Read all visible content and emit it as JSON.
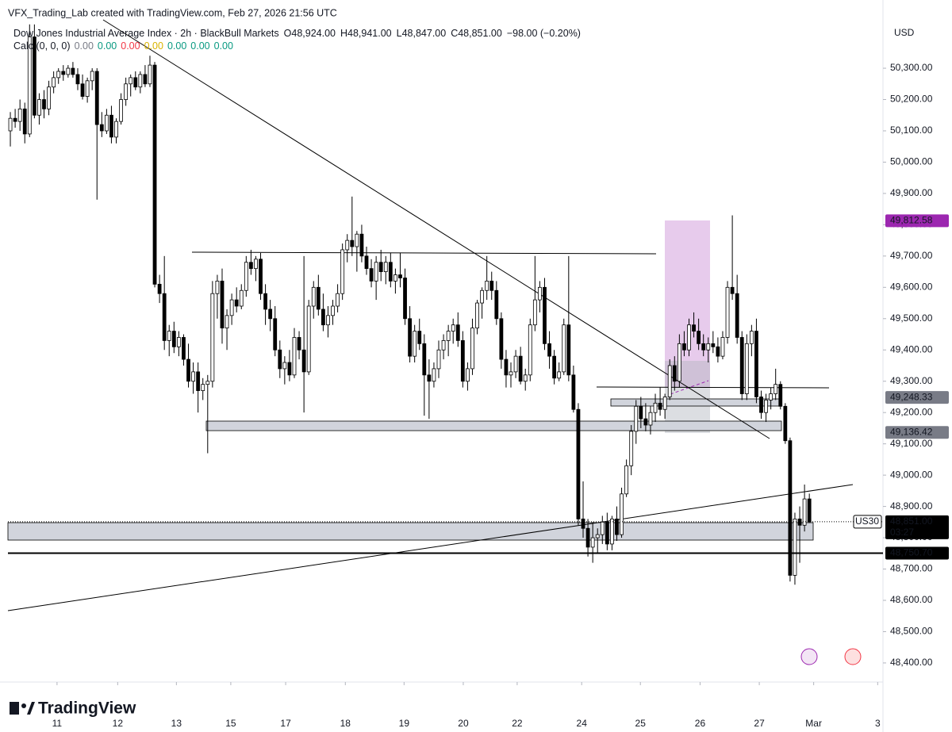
{
  "header": {
    "credit": "VFX_Trading_Lab created with TradingView.com, Feb 27, 2026 21:56 UTC",
    "symbol": "Dow Jones Industrial Average Index · 2h · BlackBull Markets",
    "open": "O48,924.00",
    "high": "H48,941.00",
    "low": "L48,847.00",
    "close": "C48,851.00",
    "change": "−98.00 (−0.20%)",
    "indicator": "Calc (0, 0, 0)",
    "indicator_values": [
      {
        "label": "0.00",
        "color": "#787b86"
      },
      {
        "label": "0.00",
        "color": "#089981"
      },
      {
        "label": "0.00",
        "color": "#f23645"
      },
      {
        "label": "0.00",
        "color": "#d9b400"
      },
      {
        "label": "0.00",
        "color": "#089981"
      },
      {
        "label": "0.00",
        "color": "#089981"
      },
      {
        "label": "0.00",
        "color": "#089981"
      }
    ]
  },
  "currency": "USD",
  "logo": "TradingView",
  "chart_data": {
    "type": "candlestick",
    "up_color": "#ffffff",
    "down_color": "#000000",
    "border_color": "#000000",
    "xlim": [
      -0.5,
      181.3
    ],
    "ylim": [
      48339,
      50442
    ],
    "grid": false,
    "xticks": [
      {
        "value": 9.7,
        "label": "11"
      },
      {
        "value": 22.3,
        "label": "12"
      },
      {
        "value": 34.5,
        "label": "13"
      },
      {
        "value": 45.8,
        "label": "15"
      },
      {
        "value": 57.2,
        "label": "17"
      },
      {
        "value": 69.6,
        "label": "18"
      },
      {
        "value": 81.8,
        "label": "19"
      },
      {
        "value": 94.1,
        "label": "20"
      },
      {
        "value": 105.3,
        "label": "22"
      },
      {
        "value": 118.7,
        "label": "24"
      },
      {
        "value": 130.9,
        "label": "25"
      },
      {
        "value": 143.3,
        "label": "26"
      },
      {
        "value": 155.6,
        "label": "27"
      },
      {
        "value": 166.9,
        "label": "Mar"
      },
      {
        "value": 180.2,
        "label": "3"
      }
    ],
    "yticks": [
      {
        "value": 48400,
        "label": "48,400.00"
      },
      {
        "value": 48500,
        "label": "48,500.00"
      },
      {
        "value": 48600,
        "label": "48,600.00"
      },
      {
        "value": 48700,
        "label": "48,700.00"
      },
      {
        "value": 48800,
        "label": "48,800.00"
      },
      {
        "value": 48900,
        "label": "48,900.00"
      },
      {
        "value": 49000,
        "label": "49,000.00"
      },
      {
        "value": 49100,
        "label": "49,100.00"
      },
      {
        "value": 49200,
        "label": "49,200.00"
      },
      {
        "value": 49300,
        "label": "49,300.00"
      },
      {
        "value": 49400,
        "label": "49,400.00"
      },
      {
        "value": 49500,
        "label": "49,500.00"
      },
      {
        "value": 49600,
        "label": "49,600.00"
      },
      {
        "value": 49700,
        "label": "49,700.00"
      },
      {
        "value": 49800,
        "label": "49,800.00"
      },
      {
        "value": 49900,
        "label": "49,900.00"
      },
      {
        "value": 50000,
        "label": "50,000.00"
      },
      {
        "value": 50100,
        "label": "50,100.00"
      },
      {
        "value": 50200,
        "label": "50,200.00"
      },
      {
        "value": 50300,
        "label": "50,300.00"
      }
    ],
    "price_labels": [
      {
        "value": 49812.58,
        "label": "49,812.58",
        "color": "#9c27b0"
      },
      {
        "value": 49248.33,
        "label": "49,248.33",
        "color": "#787b86"
      },
      {
        "value": 49136.42,
        "label": "49,136.42",
        "color": "#787b86"
      },
      {
        "value": 48750.7,
        "label": "48,750.70",
        "color": "#000000"
      }
    ],
    "current": {
      "value": 48851,
      "label": "48,851.00",
      "countdown": "03:27",
      "symbol": "US30"
    },
    "ohlc": [
      [
        50100,
        50160,
        50050,
        50140
      ],
      [
        50140,
        50170,
        50110,
        50130
      ],
      [
        50130,
        50200,
        50100,
        50170
      ],
      [
        50170,
        50190,
        50060,
        50090
      ],
      [
        50090,
        50440,
        50080,
        50400
      ],
      [
        50400,
        50440,
        50140,
        50150
      ],
      [
        50150,
        50220,
        50120,
        50200
      ],
      [
        50200,
        50230,
        50140,
        50170
      ],
      [
        50170,
        50260,
        50150,
        50240
      ],
      [
        50240,
        50290,
        50220,
        50270
      ],
      [
        50270,
        50300,
        50250,
        50290
      ],
      [
        50290,
        50310,
        50260,
        50280
      ],
      [
        50280,
        50310,
        50270,
        50300
      ],
      [
        50300,
        50320,
        50270,
        50280
      ],
      [
        50280,
        50300,
        50230,
        50250
      ],
      [
        50250,
        50280,
        50200,
        50210
      ],
      [
        50210,
        50270,
        50190,
        50260
      ],
      [
        50260,
        50300,
        50230,
        50290
      ],
      [
        50290,
        50300,
        49880,
        50120
      ],
      [
        50120,
        50160,
        50080,
        50100
      ],
      [
        50100,
        50170,
        50090,
        50150
      ],
      [
        50150,
        50180,
        50060,
        50080
      ],
      [
        50080,
        50140,
        50060,
        50130
      ],
      [
        50130,
        50220,
        50120,
        50200
      ],
      [
        50200,
        50270,
        50180,
        50250
      ],
      [
        50250,
        50280,
        50210,
        50270
      ],
      [
        50270,
        50290,
        50230,
        50240
      ],
      [
        50240,
        50290,
        50220,
        50280
      ],
      [
        50280,
        50310,
        50240,
        50250
      ],
      [
        50250,
        50340,
        50240,
        50310
      ],
      [
        50310,
        50320,
        49600,
        49610
      ],
      [
        49610,
        49640,
        49550,
        49580
      ],
      [
        49580,
        49700,
        49400,
        49430
      ],
      [
        49430,
        49480,
        49380,
        49460
      ],
      [
        49460,
        49490,
        49390,
        49410
      ],
      [
        49410,
        49460,
        49380,
        49440
      ],
      [
        49440,
        49450,
        49350,
        49370
      ],
      [
        49370,
        49420,
        49280,
        49300
      ],
      [
        49300,
        49360,
        49260,
        49330
      ],
      [
        49330,
        49360,
        49200,
        49270
      ],
      [
        49270,
        49310,
        49240,
        49290
      ],
      [
        49290,
        49320,
        49070,
        49300
      ],
      [
        49300,
        49620,
        49280,
        49580
      ],
      [
        49580,
        49640,
        49500,
        49620
      ],
      [
        49620,
        49660,
        49420,
        49470
      ],
      [
        49470,
        49530,
        49400,
        49510
      ],
      [
        49510,
        49580,
        49480,
        49560
      ],
      [
        49560,
        49600,
        49520,
        49540
      ],
      [
        49540,
        49610,
        49530,
        49590
      ],
      [
        49590,
        49700,
        49570,
        49680
      ],
      [
        49680,
        49720,
        49640,
        49660
      ],
      [
        49660,
        49700,
        49620,
        49690
      ],
      [
        49690,
        49710,
        49560,
        49580
      ],
      [
        49580,
        49610,
        49480,
        49530
      ],
      [
        49530,
        49560,
        49460,
        49500
      ],
      [
        49500,
        49540,
        49380,
        49400
      ],
      [
        49400,
        49430,
        49310,
        49340
      ],
      [
        49340,
        49380,
        49290,
        49360
      ],
      [
        49360,
        49400,
        49300,
        49320
      ],
      [
        49320,
        49470,
        49310,
        49440
      ],
      [
        49440,
        49460,
        49370,
        49400
      ],
      [
        49400,
        49700,
        49200,
        49330
      ],
      [
        49330,
        49560,
        49320,
        49540
      ],
      [
        49540,
        49620,
        49500,
        49600
      ],
      [
        49600,
        49640,
        49510,
        49530
      ],
      [
        49530,
        49580,
        49460,
        49480
      ],
      [
        49480,
        49540,
        49440,
        49510
      ],
      [
        49510,
        49560,
        49480,
        49540
      ],
      [
        49540,
        49610,
        49520,
        49580
      ],
      [
        49580,
        49740,
        49560,
        49720
      ],
      [
        49720,
        49770,
        49680,
        49750
      ],
      [
        49750,
        49890,
        49700,
        49730
      ],
      [
        49730,
        49780,
        49650,
        49770
      ],
      [
        49770,
        49800,
        49680,
        49700
      ],
      [
        49700,
        49730,
        49640,
        49660
      ],
      [
        49660,
        49690,
        49600,
        49620
      ],
      [
        49620,
        49700,
        49560,
        49680
      ],
      [
        49680,
        49720,
        49620,
        49650
      ],
      [
        49650,
        49700,
        49610,
        49680
      ],
      [
        49680,
        49710,
        49600,
        49620
      ],
      [
        49620,
        49660,
        49580,
        49640
      ],
      [
        49640,
        49710,
        49600,
        49630
      ],
      [
        49630,
        49660,
        49480,
        49500
      ],
      [
        49500,
        49540,
        49360,
        49380
      ],
      [
        49380,
        49480,
        49360,
        49460
      ],
      [
        49460,
        49500,
        49400,
        49420
      ],
      [
        49420,
        49450,
        49190,
        49320
      ],
      [
        49320,
        49370,
        49180,
        49300
      ],
      [
        49300,
        49360,
        49280,
        49340
      ],
      [
        49340,
        49430,
        49310,
        49400
      ],
      [
        49400,
        49450,
        49370,
        49430
      ],
      [
        49430,
        49480,
        49380,
        49460
      ],
      [
        49460,
        49500,
        49420,
        49480
      ],
      [
        49480,
        49520,
        49410,
        49430
      ],
      [
        49430,
        49460,
        49280,
        49300
      ],
      [
        49300,
        49360,
        49270,
        49340
      ],
      [
        49340,
        49500,
        49320,
        49470
      ],
      [
        49470,
        49560,
        49450,
        49550
      ],
      [
        49550,
        49600,
        49500,
        49590
      ],
      [
        49590,
        49700,
        49560,
        49620
      ],
      [
        49620,
        49650,
        49560,
        49590
      ],
      [
        49590,
        49620,
        49480,
        49500
      ],
      [
        49500,
        49520,
        49340,
        49370
      ],
      [
        49370,
        49400,
        49280,
        49320
      ],
      [
        49320,
        49360,
        49280,
        49330
      ],
      [
        49330,
        49400,
        49310,
        49380
      ],
      [
        49380,
        49410,
        49290,
        49300
      ],
      [
        49300,
        49340,
        49270,
        49320
      ],
      [
        49320,
        49500,
        49300,
        49480
      ],
      [
        49480,
        49700,
        49460,
        49560
      ],
      [
        49560,
        49620,
        49520,
        49600
      ],
      [
        49600,
        49630,
        49400,
        49420
      ],
      [
        49420,
        49460,
        49340,
        49380
      ],
      [
        49380,
        49400,
        49290,
        49310
      ],
      [
        49310,
        49360,
        49300,
        49330
      ],
      [
        49330,
        49500,
        49320,
        49480
      ],
      [
        49480,
        49700,
        49300,
        49320
      ],
      [
        49320,
        49350,
        49200,
        49210
      ],
      [
        49210,
        49230,
        48840,
        48860
      ],
      [
        48860,
        48980,
        48800,
        48830
      ],
      [
        48830,
        48860,
        48740,
        48770
      ],
      [
        48770,
        48850,
        48720,
        48800
      ],
      [
        48800,
        48830,
        48750,
        48810
      ],
      [
        48810,
        48870,
        48780,
        48850
      ],
      [
        48850,
        48880,
        48760,
        48780
      ],
      [
        48780,
        48870,
        48760,
        48860
      ],
      [
        48860,
        48900,
        48790,
        48810
      ],
      [
        48810,
        48960,
        48800,
        48940
      ],
      [
        48940,
        49050,
        48930,
        49030
      ],
      [
        49030,
        49160,
        49000,
        49140
      ],
      [
        49140,
        49240,
        49100,
        49220
      ],
      [
        49220,
        49250,
        49150,
        49180
      ],
      [
        49180,
        49230,
        49140,
        49160
      ],
      [
        49160,
        49220,
        49130,
        49200
      ],
      [
        49200,
        49260,
        49170,
        49230
      ],
      [
        49230,
        49280,
        49190,
        49210
      ],
      [
        49210,
        49260,
        49180,
        49250
      ],
      [
        49250,
        49370,
        49240,
        49350
      ],
      [
        49350,
        49380,
        49270,
        49300
      ],
      [
        49300,
        49450,
        49280,
        49420
      ],
      [
        49420,
        49460,
        49380,
        49400
      ],
      [
        49400,
        49500,
        49380,
        49480
      ],
      [
        49480,
        49520,
        49440,
        49460
      ],
      [
        49460,
        49500,
        49400,
        49420
      ],
      [
        49420,
        49450,
        49380,
        49400
      ],
      [
        49400,
        49440,
        49360,
        49420
      ],
      [
        49420,
        49460,
        49390,
        49410
      ],
      [
        49410,
        49440,
        49360,
        49380
      ],
      [
        49380,
        49460,
        49370,
        49440
      ],
      [
        49440,
        49620,
        49420,
        49600
      ],
      [
        49600,
        49830,
        49560,
        49580
      ],
      [
        49580,
        49640,
        49420,
        49440
      ],
      [
        49440,
        49460,
        49240,
        49260
      ],
      [
        49260,
        49450,
        49240,
        49420
      ],
      [
        49420,
        49480,
        49380,
        49460
      ],
      [
        49460,
        49500,
        49230,
        49250
      ],
      [
        49250,
        49270,
        49180,
        49200
      ],
      [
        49200,
        49260,
        49170,
        49240
      ],
      [
        49240,
        49280,
        49210,
        49260
      ],
      [
        49260,
        49340,
        49240,
        49290
      ],
      [
        49290,
        49300,
        49210,
        49220
      ],
      [
        49220,
        49230,
        49100,
        49110
      ],
      [
        49110,
        49120,
        48660,
        48680
      ],
      [
        48680,
        48880,
        48650,
        48860
      ],
      [
        48860,
        48900,
        48720,
        48840
      ],
      [
        48840,
        48970,
        48820,
        48924
      ],
      [
        48924,
        48941,
        48847,
        48851
      ]
    ]
  }
}
